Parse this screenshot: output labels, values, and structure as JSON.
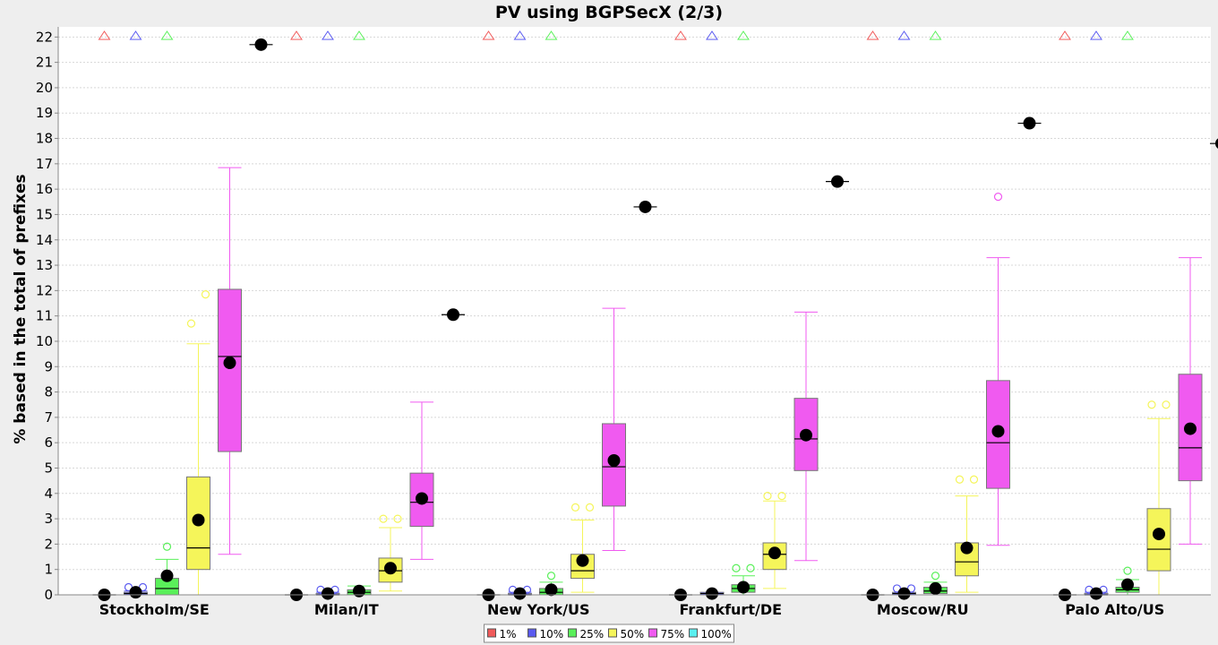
{
  "chart_data": {
    "type": "boxplot",
    "title": "PV using BGPSecX  (2/3)",
    "ylabel": "% based in the total of prefixes",
    "xlabel": "",
    "ylim": [
      0,
      22.4
    ],
    "yticks": [
      0,
      1,
      2,
      3,
      4,
      5,
      6,
      7,
      8,
      9,
      10,
      11,
      12,
      13,
      14,
      15,
      16,
      17,
      18,
      19,
      20,
      21,
      22
    ],
    "grid": true,
    "legend_position": "bottom-center",
    "categories": [
      "Stockholm/SE",
      "Milan/IT",
      "New York/US",
      "Frankfurt/DE",
      "Moscow/RU",
      "Palo Alto/US"
    ],
    "series": [
      {
        "name": "1%",
        "color": "#f05a5a",
        "data": [
          {
            "min": 0,
            "q1": 0,
            "median": 0,
            "q3": 0,
            "max": 0,
            "mean": 0,
            "outliers": [],
            "far_out": true
          },
          {
            "min": 0,
            "q1": 0,
            "median": 0,
            "q3": 0,
            "max": 0,
            "mean": 0,
            "outliers": [],
            "far_out": true
          },
          {
            "min": 0,
            "q1": 0,
            "median": 0,
            "q3": 0,
            "max": 0,
            "mean": 0,
            "outliers": [],
            "far_out": true
          },
          {
            "min": 0,
            "q1": 0,
            "median": 0,
            "q3": 0,
            "max": 0,
            "mean": 0,
            "outliers": [],
            "far_out": true
          },
          {
            "min": 0,
            "q1": 0,
            "median": 0,
            "q3": 0,
            "max": 0,
            "mean": 0,
            "outliers": [],
            "far_out": true
          },
          {
            "min": 0,
            "q1": 0,
            "median": 0,
            "q3": 0,
            "max": 0,
            "mean": 0,
            "outliers": [],
            "far_out": true
          }
        ]
      },
      {
        "name": "10%",
        "color": "#5a5af0",
        "data": [
          {
            "min": 0,
            "q1": 0,
            "median": 0.05,
            "q3": 0.1,
            "max": 0.15,
            "mean": 0.1,
            "outliers": [
              0.3,
              0.3
            ],
            "far_out": true
          },
          {
            "min": 0,
            "q1": 0,
            "median": 0,
            "q3": 0.05,
            "max": 0.1,
            "mean": 0.05,
            "outliers": [
              0.2,
              0.2
            ],
            "far_out": true
          },
          {
            "min": 0,
            "q1": 0,
            "median": 0,
            "q3": 0.05,
            "max": 0.1,
            "mean": 0.05,
            "outliers": [
              0.2,
              0.2
            ],
            "far_out": true
          },
          {
            "min": 0,
            "q1": 0,
            "median": 0.05,
            "q3": 0.1,
            "max": 0.1,
            "mean": 0.05,
            "outliers": [],
            "far_out": true
          },
          {
            "min": 0,
            "q1": 0,
            "median": 0.05,
            "q3": 0.1,
            "max": 0.1,
            "mean": 0.05,
            "outliers": [
              0.25,
              0.25
            ],
            "far_out": true
          },
          {
            "min": 0,
            "q1": 0,
            "median": 0,
            "q3": 0.05,
            "max": 0.1,
            "mean": 0.05,
            "outliers": [
              0.2,
              0.2
            ],
            "far_out": true
          }
        ]
      },
      {
        "name": "25%",
        "color": "#5af05a",
        "data": [
          {
            "min": 0,
            "q1": 0,
            "median": 0.25,
            "q3": 0.65,
            "max": 1.4,
            "mean": 0.75,
            "outliers": [
              1.9
            ],
            "far_out": true
          },
          {
            "min": 0,
            "q1": 0,
            "median": 0.1,
            "q3": 0.2,
            "max": 0.35,
            "mean": 0.15,
            "outliers": [],
            "far_out": true
          },
          {
            "min": 0,
            "q1": 0,
            "median": 0.1,
            "q3": 0.25,
            "max": 0.5,
            "mean": 0.2,
            "outliers": [
              0.75
            ],
            "far_out": true
          },
          {
            "min": 0,
            "q1": 0.1,
            "median": 0.25,
            "q3": 0.4,
            "max": 0.75,
            "mean": 0.3,
            "outliers": [
              1.05,
              1.05
            ],
            "far_out": true
          },
          {
            "min": 0,
            "q1": 0.05,
            "median": 0.15,
            "q3": 0.3,
            "max": 0.5,
            "mean": 0.25,
            "outliers": [
              0.75
            ],
            "far_out": true
          },
          {
            "min": 0,
            "q1": 0.1,
            "median": 0.2,
            "q3": 0.3,
            "max": 0.6,
            "mean": 0.4,
            "outliers": [
              0.95
            ],
            "far_out": true
          }
        ]
      },
      {
        "name": "50%",
        "color": "#f5f55a",
        "data": [
          {
            "min": 0,
            "q1": 1,
            "median": 1.85,
            "q3": 4.65,
            "max": 9.9,
            "mean": 2.95,
            "outliers": [
              10.7,
              11.85
            ],
            "far_out": false
          },
          {
            "min": 0.15,
            "q1": 0.5,
            "median": 0.95,
            "q3": 1.45,
            "max": 2.65,
            "mean": 1.05,
            "outliers": [
              3,
              3
            ],
            "far_out": false
          },
          {
            "min": 0.1,
            "q1": 0.65,
            "median": 0.95,
            "q3": 1.6,
            "max": 2.95,
            "mean": 1.35,
            "outliers": [
              3.45,
              3.45
            ],
            "far_out": false
          },
          {
            "min": 0.25,
            "q1": 1,
            "median": 1.6,
            "q3": 2.05,
            "max": 3.7,
            "mean": 1.65,
            "outliers": [
              3.9,
              3.9
            ],
            "far_out": false
          },
          {
            "min": 0.1,
            "q1": 0.75,
            "median": 1.3,
            "q3": 2.05,
            "max": 3.9,
            "mean": 1.85,
            "outliers": [
              4.55,
              4.55
            ],
            "far_out": false
          },
          {
            "min": 0,
            "q1": 0.95,
            "median": 1.8,
            "q3": 3.4,
            "max": 6.95,
            "mean": 2.4,
            "outliers": [
              7.5,
              7.5
            ],
            "far_out": false
          }
        ]
      },
      {
        "name": "75%",
        "color": "#f05af0",
        "data": [
          {
            "min": 1.6,
            "q1": 5.65,
            "median": 9.4,
            "q3": 12.05,
            "max": 16.85,
            "mean": 9.15,
            "outliers": [],
            "far_out": false
          },
          {
            "min": 1.4,
            "q1": 2.7,
            "median": 3.65,
            "q3": 4.8,
            "max": 7.6,
            "mean": 3.8,
            "outliers": [],
            "far_out": false
          },
          {
            "min": 1.75,
            "q1": 3.5,
            "median": 5.05,
            "q3": 6.75,
            "max": 11.3,
            "mean": 5.3,
            "outliers": [],
            "far_out": false
          },
          {
            "min": 1.35,
            "q1": 4.9,
            "median": 6.15,
            "q3": 7.75,
            "max": 11.15,
            "mean": 6.3,
            "outliers": [],
            "far_out": false
          },
          {
            "min": 1.95,
            "q1": 4.2,
            "median": 6,
            "q3": 8.45,
            "max": 13.3,
            "mean": 6.45,
            "outliers": [
              15.7
            ],
            "far_out": false
          },
          {
            "min": 2,
            "q1": 4.5,
            "median": 5.8,
            "q3": 8.7,
            "max": 13.3,
            "mean": 6.55,
            "outliers": [],
            "far_out": false
          }
        ]
      },
      {
        "name": "100%",
        "color": "#5af0f0",
        "data": [
          {
            "min": 21.7,
            "q1": 21.7,
            "median": 21.7,
            "q3": 21.7,
            "max": 21.7,
            "mean": 21.7,
            "outliers": [],
            "far_out": false
          },
          {
            "min": 11.05,
            "q1": 11.05,
            "median": 11.05,
            "q3": 11.05,
            "max": 11.05,
            "mean": 11.05,
            "outliers": [],
            "far_out": false
          },
          {
            "min": 15.3,
            "q1": 15.3,
            "median": 15.3,
            "q3": 15.3,
            "max": 15.3,
            "mean": 15.3,
            "outliers": [],
            "far_out": false
          },
          {
            "min": 16.3,
            "q1": 16.3,
            "median": 16.3,
            "q3": 16.3,
            "max": 16.3,
            "mean": 16.3,
            "outliers": [],
            "far_out": false
          },
          {
            "min": 18.6,
            "q1": 18.6,
            "median": 18.6,
            "q3": 18.6,
            "max": 18.6,
            "mean": 18.6,
            "outliers": [],
            "far_out": false
          },
          {
            "min": 17.8,
            "q1": 17.8,
            "median": 17.8,
            "q3": 17.8,
            "max": 17.8,
            "mean": 17.8,
            "outliers": [],
            "far_out": false
          }
        ]
      }
    ]
  }
}
